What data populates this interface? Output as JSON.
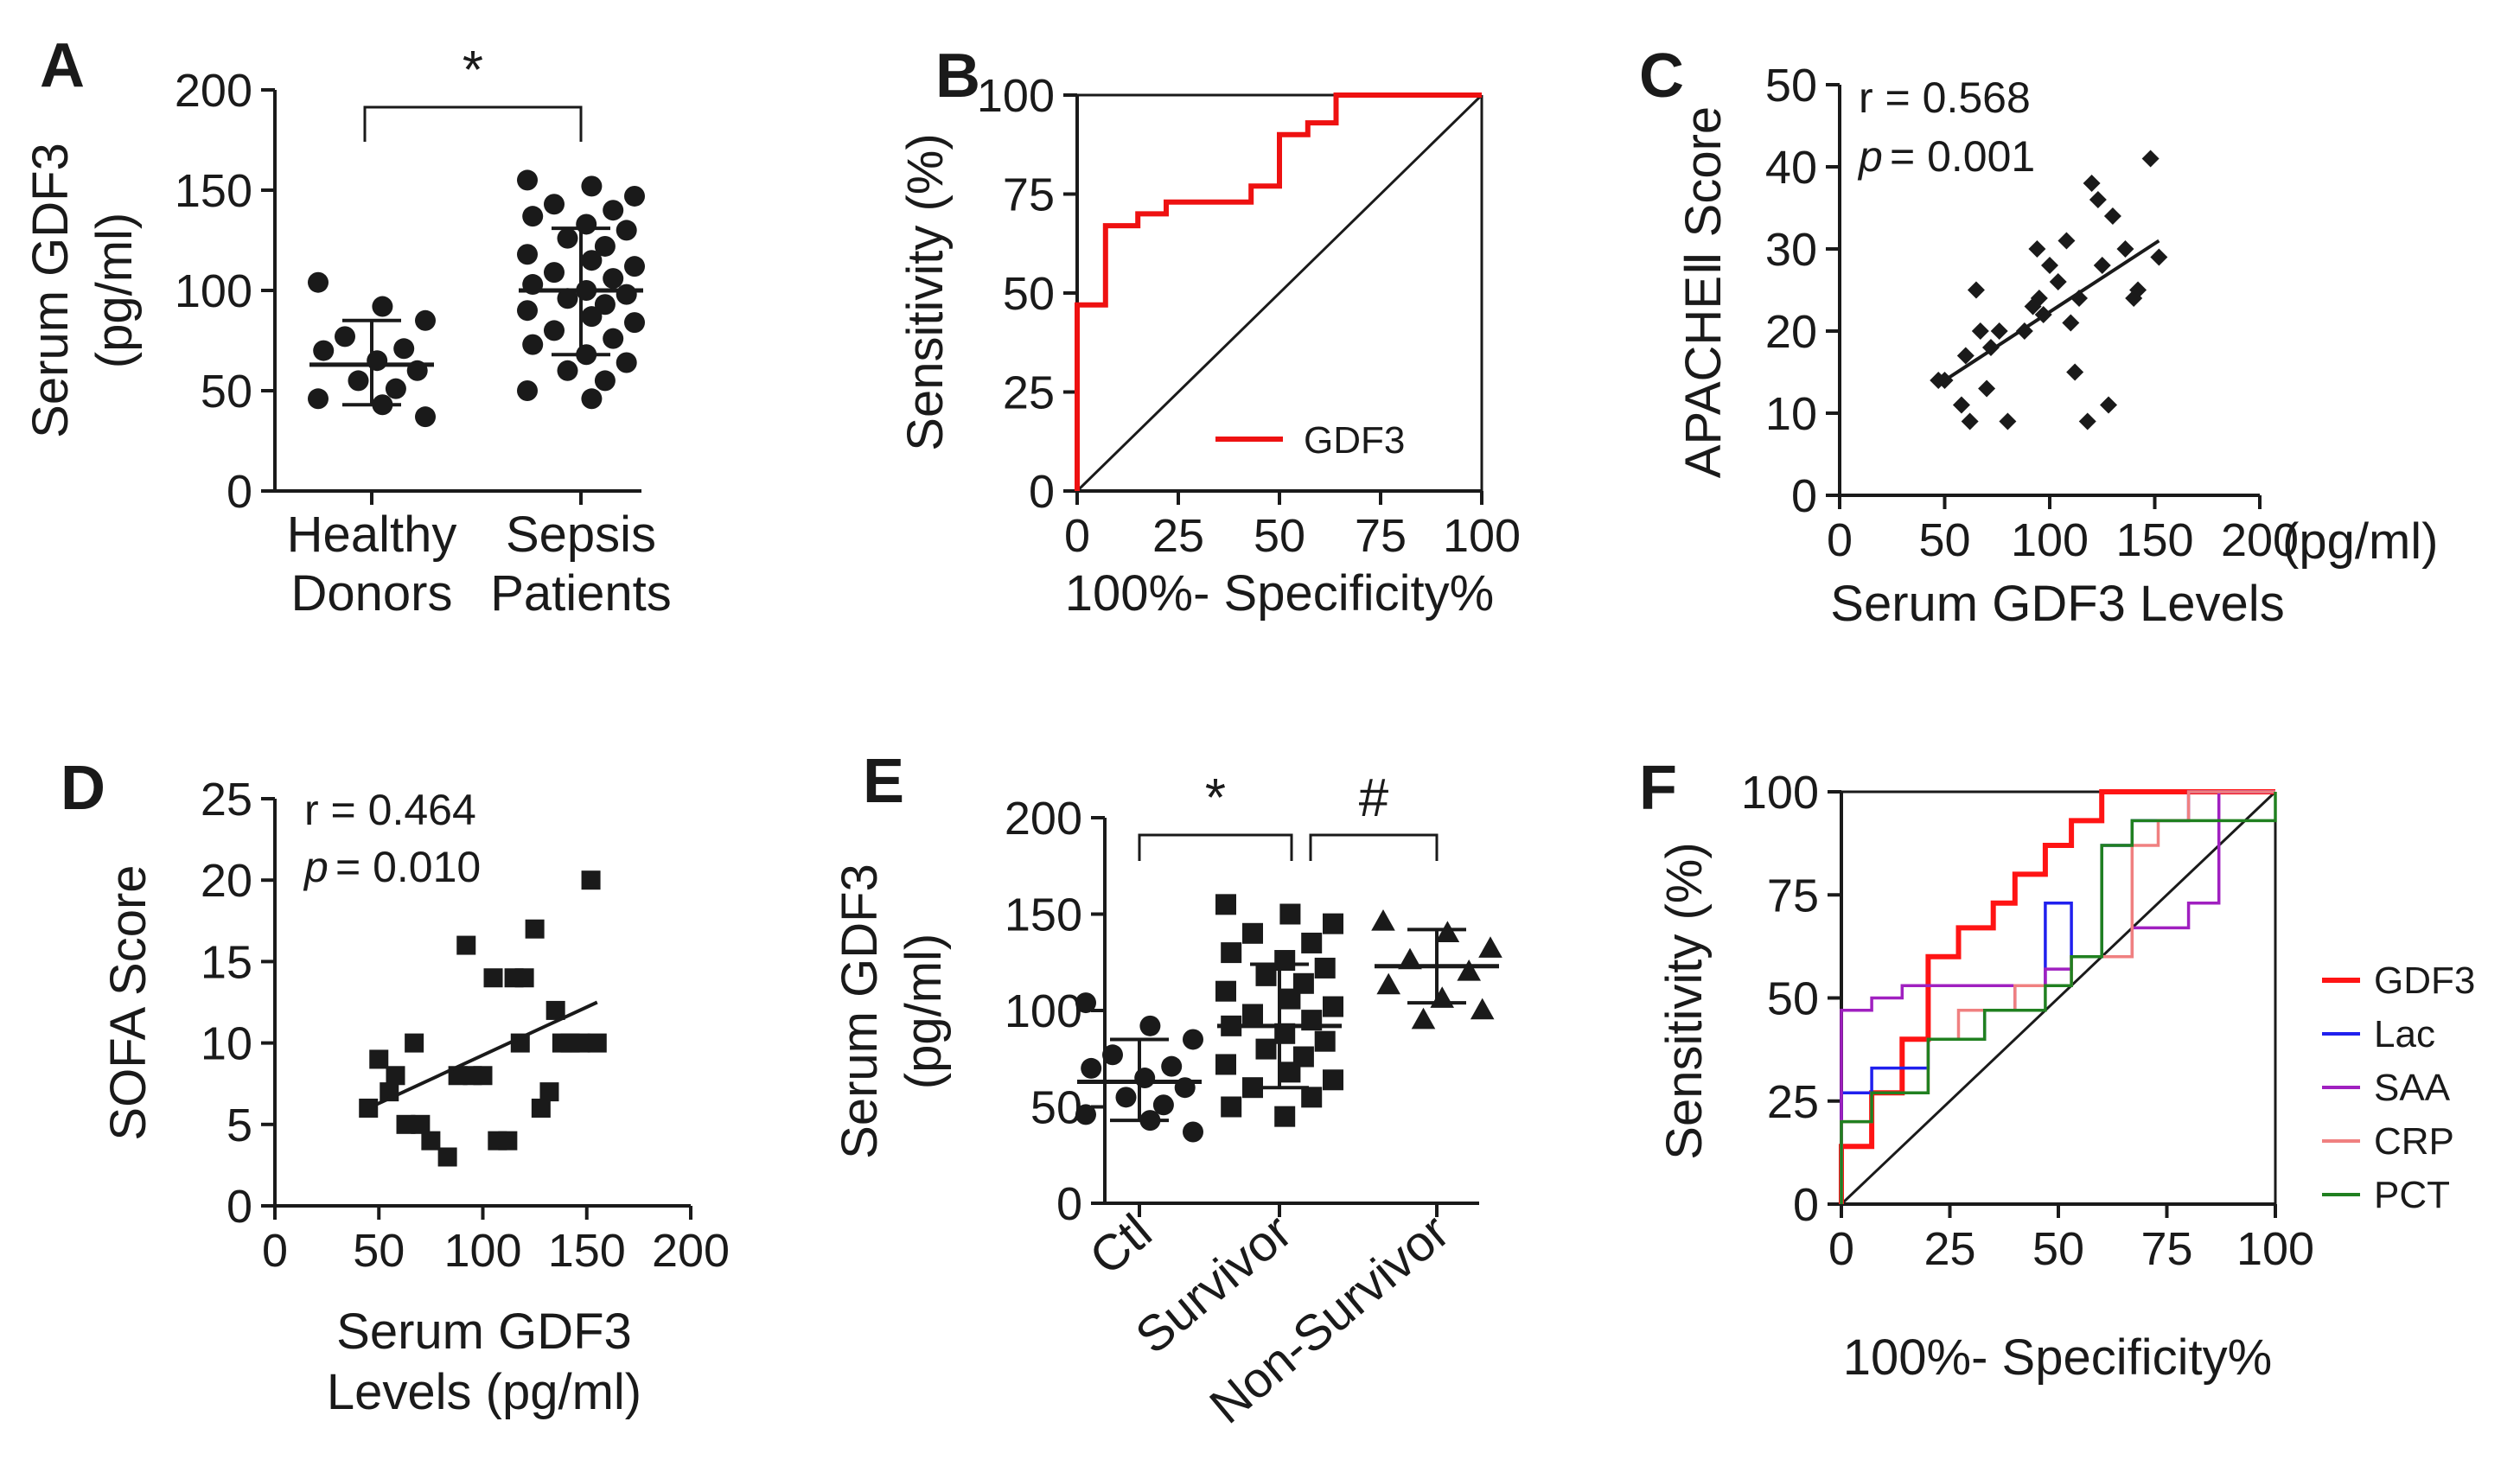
{
  "chart_data": [
    {
      "id": "A",
      "panel_label": "A",
      "type": "scatter",
      "subtype": "dot-plot-mean-sd",
      "ylabel": "Serum GDF3",
      "ylabel2": "(pg/ml)",
      "ylim": [
        0,
        200
      ],
      "yticks": [
        0,
        50,
        100,
        150,
        200
      ],
      "groups": [
        {
          "label_lines": [
            "Healthy",
            "Donors"
          ],
          "values": [
            104,
            92,
            85,
            77,
            71,
            70,
            65,
            60,
            55,
            51,
            46,
            43,
            37
          ],
          "mean": 63,
          "sd_low": 43,
          "sd_high": 85
        },
        {
          "label_lines": [
            "Sepsis",
            "Patients"
          ],
          "values": [
            155,
            152,
            147,
            143,
            140,
            137,
            133,
            130,
            126,
            122,
            118,
            115,
            112,
            109,
            106,
            103,
            100,
            98,
            96,
            93,
            90,
            87,
            84,
            80,
            76,
            73,
            68,
            64,
            60,
            55,
            50,
            46
          ],
          "mean": 100,
          "sd_low": 68,
          "sd_high": 131
        }
      ],
      "significance": "*"
    },
    {
      "id": "B",
      "panel_label": "B",
      "type": "line",
      "subtype": "roc",
      "xlabel": "100%- Specificity%",
      "ylabel": "Sensitivity (%)",
      "xlim": [
        0,
        100
      ],
      "ylim": [
        0,
        100
      ],
      "xticks": [
        0,
        25,
        50,
        75,
        100
      ],
      "yticks": [
        0,
        25,
        50,
        75,
        100
      ],
      "series": [
        {
          "name": "GDF3",
          "color": "#ee1111",
          "x": [
            0,
            0,
            7,
            7,
            15,
            15,
            22,
            22,
            43,
            43,
            50,
            50,
            57,
            57,
            64,
            64,
            100
          ],
          "y": [
            0,
            47,
            47,
            67,
            67,
            70,
            70,
            73,
            73,
            77,
            77,
            90,
            90,
            93,
            93,
            100,
            100
          ]
        }
      ]
    },
    {
      "id": "C",
      "panel_label": "C",
      "type": "scatter",
      "xlabel": "Serum GDF3 Levels",
      "x_unit": "(pg/ml)",
      "ylabel": "APACHEⅡ Score",
      "xlim": [
        0,
        200
      ],
      "ylim": [
        0,
        50
      ],
      "xticks": [
        0,
        50,
        100,
        150,
        200
      ],
      "yticks": [
        0,
        10,
        20,
        30,
        40,
        50
      ],
      "r_text": "r  = 0.568",
      "p_text": "= 0.001",
      "p_label": "p",
      "points": [
        [
          47,
          14
        ],
        [
          50,
          14
        ],
        [
          58,
          11
        ],
        [
          60,
          17
        ],
        [
          62,
          9
        ],
        [
          65,
          25
        ],
        [
          67,
          20
        ],
        [
          70,
          13
        ],
        [
          72,
          18
        ],
        [
          76,
          20
        ],
        [
          80,
          9
        ],
        [
          88,
          20
        ],
        [
          92,
          23
        ],
        [
          94,
          30
        ],
        [
          95,
          24
        ],
        [
          97,
          22
        ],
        [
          100,
          28
        ],
        [
          104,
          26
        ],
        [
          108,
          31
        ],
        [
          110,
          21
        ],
        [
          112,
          15
        ],
        [
          114,
          24
        ],
        [
          118,
          9
        ],
        [
          120,
          38
        ],
        [
          123,
          36
        ],
        [
          125,
          28
        ],
        [
          128,
          11
        ],
        [
          130,
          34
        ],
        [
          136,
          30
        ],
        [
          140,
          24
        ],
        [
          142,
          25
        ],
        [
          148,
          41
        ],
        [
          152,
          29
        ]
      ],
      "fit": [
        [
          47,
          13.5
        ],
        [
          152,
          31
        ]
      ]
    },
    {
      "id": "D",
      "panel_label": "D",
      "type": "scatter",
      "xlabel": "Serum GDF3",
      "xlabel2": "Levels (pg/ml)",
      "ylabel": "SOFA Score",
      "xlim": [
        0,
        200
      ],
      "ylim": [
        0,
        25
      ],
      "xticks": [
        0,
        50,
        100,
        150,
        200
      ],
      "yticks": [
        0,
        5,
        10,
        15,
        20,
        25
      ],
      "r_text": "r  = 0.464",
      "p_text": "= 0.010",
      "p_label": "p",
      "points": [
        [
          45,
          6
        ],
        [
          50,
          9
        ],
        [
          55,
          7
        ],
        [
          58,
          8
        ],
        [
          63,
          5
        ],
        [
          67,
          10
        ],
        [
          70,
          5
        ],
        [
          75,
          4
        ],
        [
          83,
          3
        ],
        [
          88,
          8
        ],
        [
          92,
          16
        ],
        [
          95,
          8
        ],
        [
          100,
          8
        ],
        [
          105,
          14
        ],
        [
          107,
          4
        ],
        [
          112,
          4
        ],
        [
          115,
          14
        ],
        [
          118,
          10
        ],
        [
          120,
          14
        ],
        [
          125,
          17
        ],
        [
          128,
          6
        ],
        [
          132,
          7
        ],
        [
          135,
          12
        ],
        [
          138,
          10
        ],
        [
          142,
          10
        ],
        [
          147,
          10
        ],
        [
          152,
          20
        ],
        [
          155,
          10
        ]
      ],
      "fit": [
        [
          45,
          6
        ],
        [
          155,
          12.5
        ]
      ]
    },
    {
      "id": "E",
      "panel_label": "E",
      "type": "scatter",
      "subtype": "dot-plot-mean-sd",
      "ylabel": "Serum GDF3",
      "ylabel2": "(pg/ml)",
      "ylim": [
        0,
        200
      ],
      "yticks": [
        0,
        50,
        100,
        150,
        200
      ],
      "groups": [
        {
          "label": "Ctl",
          "marker": "circle",
          "values": [
            104,
            92,
            85,
            77,
            71,
            70,
            65,
            60,
            55,
            51,
            46,
            43,
            37
          ],
          "mean": 63,
          "sd_low": 43,
          "sd_high": 85
        },
        {
          "label": "Survivor",
          "marker": "square",
          "values": [
            155,
            150,
            145,
            140,
            135,
            130,
            126,
            122,
            118,
            114,
            110,
            106,
            102,
            98,
            95,
            92,
            88,
            84,
            80,
            76,
            72,
            68,
            64,
            60,
            55,
            50,
            45
          ],
          "mean": 92,
          "sd_low": 60,
          "sd_high": 124
        },
        {
          "label": "Non-Survivor",
          "marker": "triangle",
          "values": [
            146,
            140,
            132,
            126,
            120,
            113,
            106,
            100,
            95
          ],
          "mean": 123,
          "sd_low": 104,
          "sd_high": 142
        }
      ],
      "significance": [
        {
          "from": 0,
          "to": 1,
          "symbol": "*"
        },
        {
          "from": 1,
          "to": 2,
          "symbol": "#"
        }
      ]
    },
    {
      "id": "F",
      "panel_label": "F",
      "type": "line",
      "subtype": "roc",
      "xlabel": "100%- Specificity%",
      "ylabel": "Sensitivity (%)",
      "xlim": [
        0,
        100
      ],
      "ylim": [
        0,
        100
      ],
      "xticks": [
        0,
        25,
        50,
        75,
        100
      ],
      "yticks": [
        0,
        25,
        50,
        75,
        100
      ],
      "legend_position": "right",
      "series": [
        {
          "name": "GDF3",
          "color": "#ff1414",
          "x": [
            0,
            0,
            7,
            7,
            14,
            14,
            20,
            20,
            27,
            27,
            35,
            35,
            40,
            40,
            47,
            47,
            53,
            53,
            60,
            60,
            100
          ],
          "y": [
            0,
            14,
            14,
            27,
            27,
            40,
            40,
            60,
            60,
            67,
            67,
            73,
            73,
            80,
            80,
            87,
            87,
            93,
            93,
            100,
            100
          ]
        },
        {
          "name": "Lac",
          "color": "#2020ee",
          "x": [
            0,
            0,
            7,
            7,
            20,
            20,
            33,
            33,
            40,
            40,
            47,
            47,
            53,
            53,
            60,
            60,
            67,
            67,
            80,
            80,
            100
          ],
          "y": [
            0,
            27,
            27,
            33,
            33,
            40,
            40,
            47,
            47,
            53,
            53,
            73,
            73,
            60,
            60,
            87,
            87,
            93,
            93,
            100,
            100
          ]
        },
        {
          "name": "SAA",
          "color": "#a020c0",
          "x": [
            0,
            0,
            7,
            7,
            14,
            14,
            33,
            33,
            47,
            47,
            53,
            53,
            60,
            60,
            67,
            67,
            73,
            73,
            80,
            80,
            87,
            87,
            100
          ],
          "y": [
            0,
            47,
            47,
            50,
            50,
            53,
            53,
            53,
            53,
            57,
            57,
            60,
            60,
            60,
            60,
            67,
            67,
            67,
            67,
            73,
            73,
            100,
            100
          ]
        },
        {
          "name": "CRP",
          "color": "#f08080",
          "x": [
            0,
            0,
            7,
            7,
            20,
            20,
            27,
            27,
            40,
            40,
            53,
            53,
            60,
            60,
            67,
            67,
            73,
            73,
            80,
            80,
            100
          ],
          "y": [
            0,
            20,
            20,
            27,
            27,
            40,
            40,
            47,
            47,
            53,
            53,
            60,
            60,
            60,
            60,
            87,
            87,
            93,
            93,
            100,
            100
          ]
        },
        {
          "name": "PCT",
          "color": "#208020",
          "x": [
            0,
            0,
            7,
            7,
            20,
            20,
            33,
            33,
            47,
            47,
            53,
            53,
            60,
            60,
            67,
            67,
            80,
            80,
            100,
            100
          ],
          "y": [
            0,
            20,
            20,
            27,
            27,
            40,
            40,
            47,
            47,
            53,
            53,
            60,
            60,
            87,
            87,
            93,
            93,
            93,
            93,
            100
          ]
        }
      ],
      "diagonal": true
    }
  ]
}
